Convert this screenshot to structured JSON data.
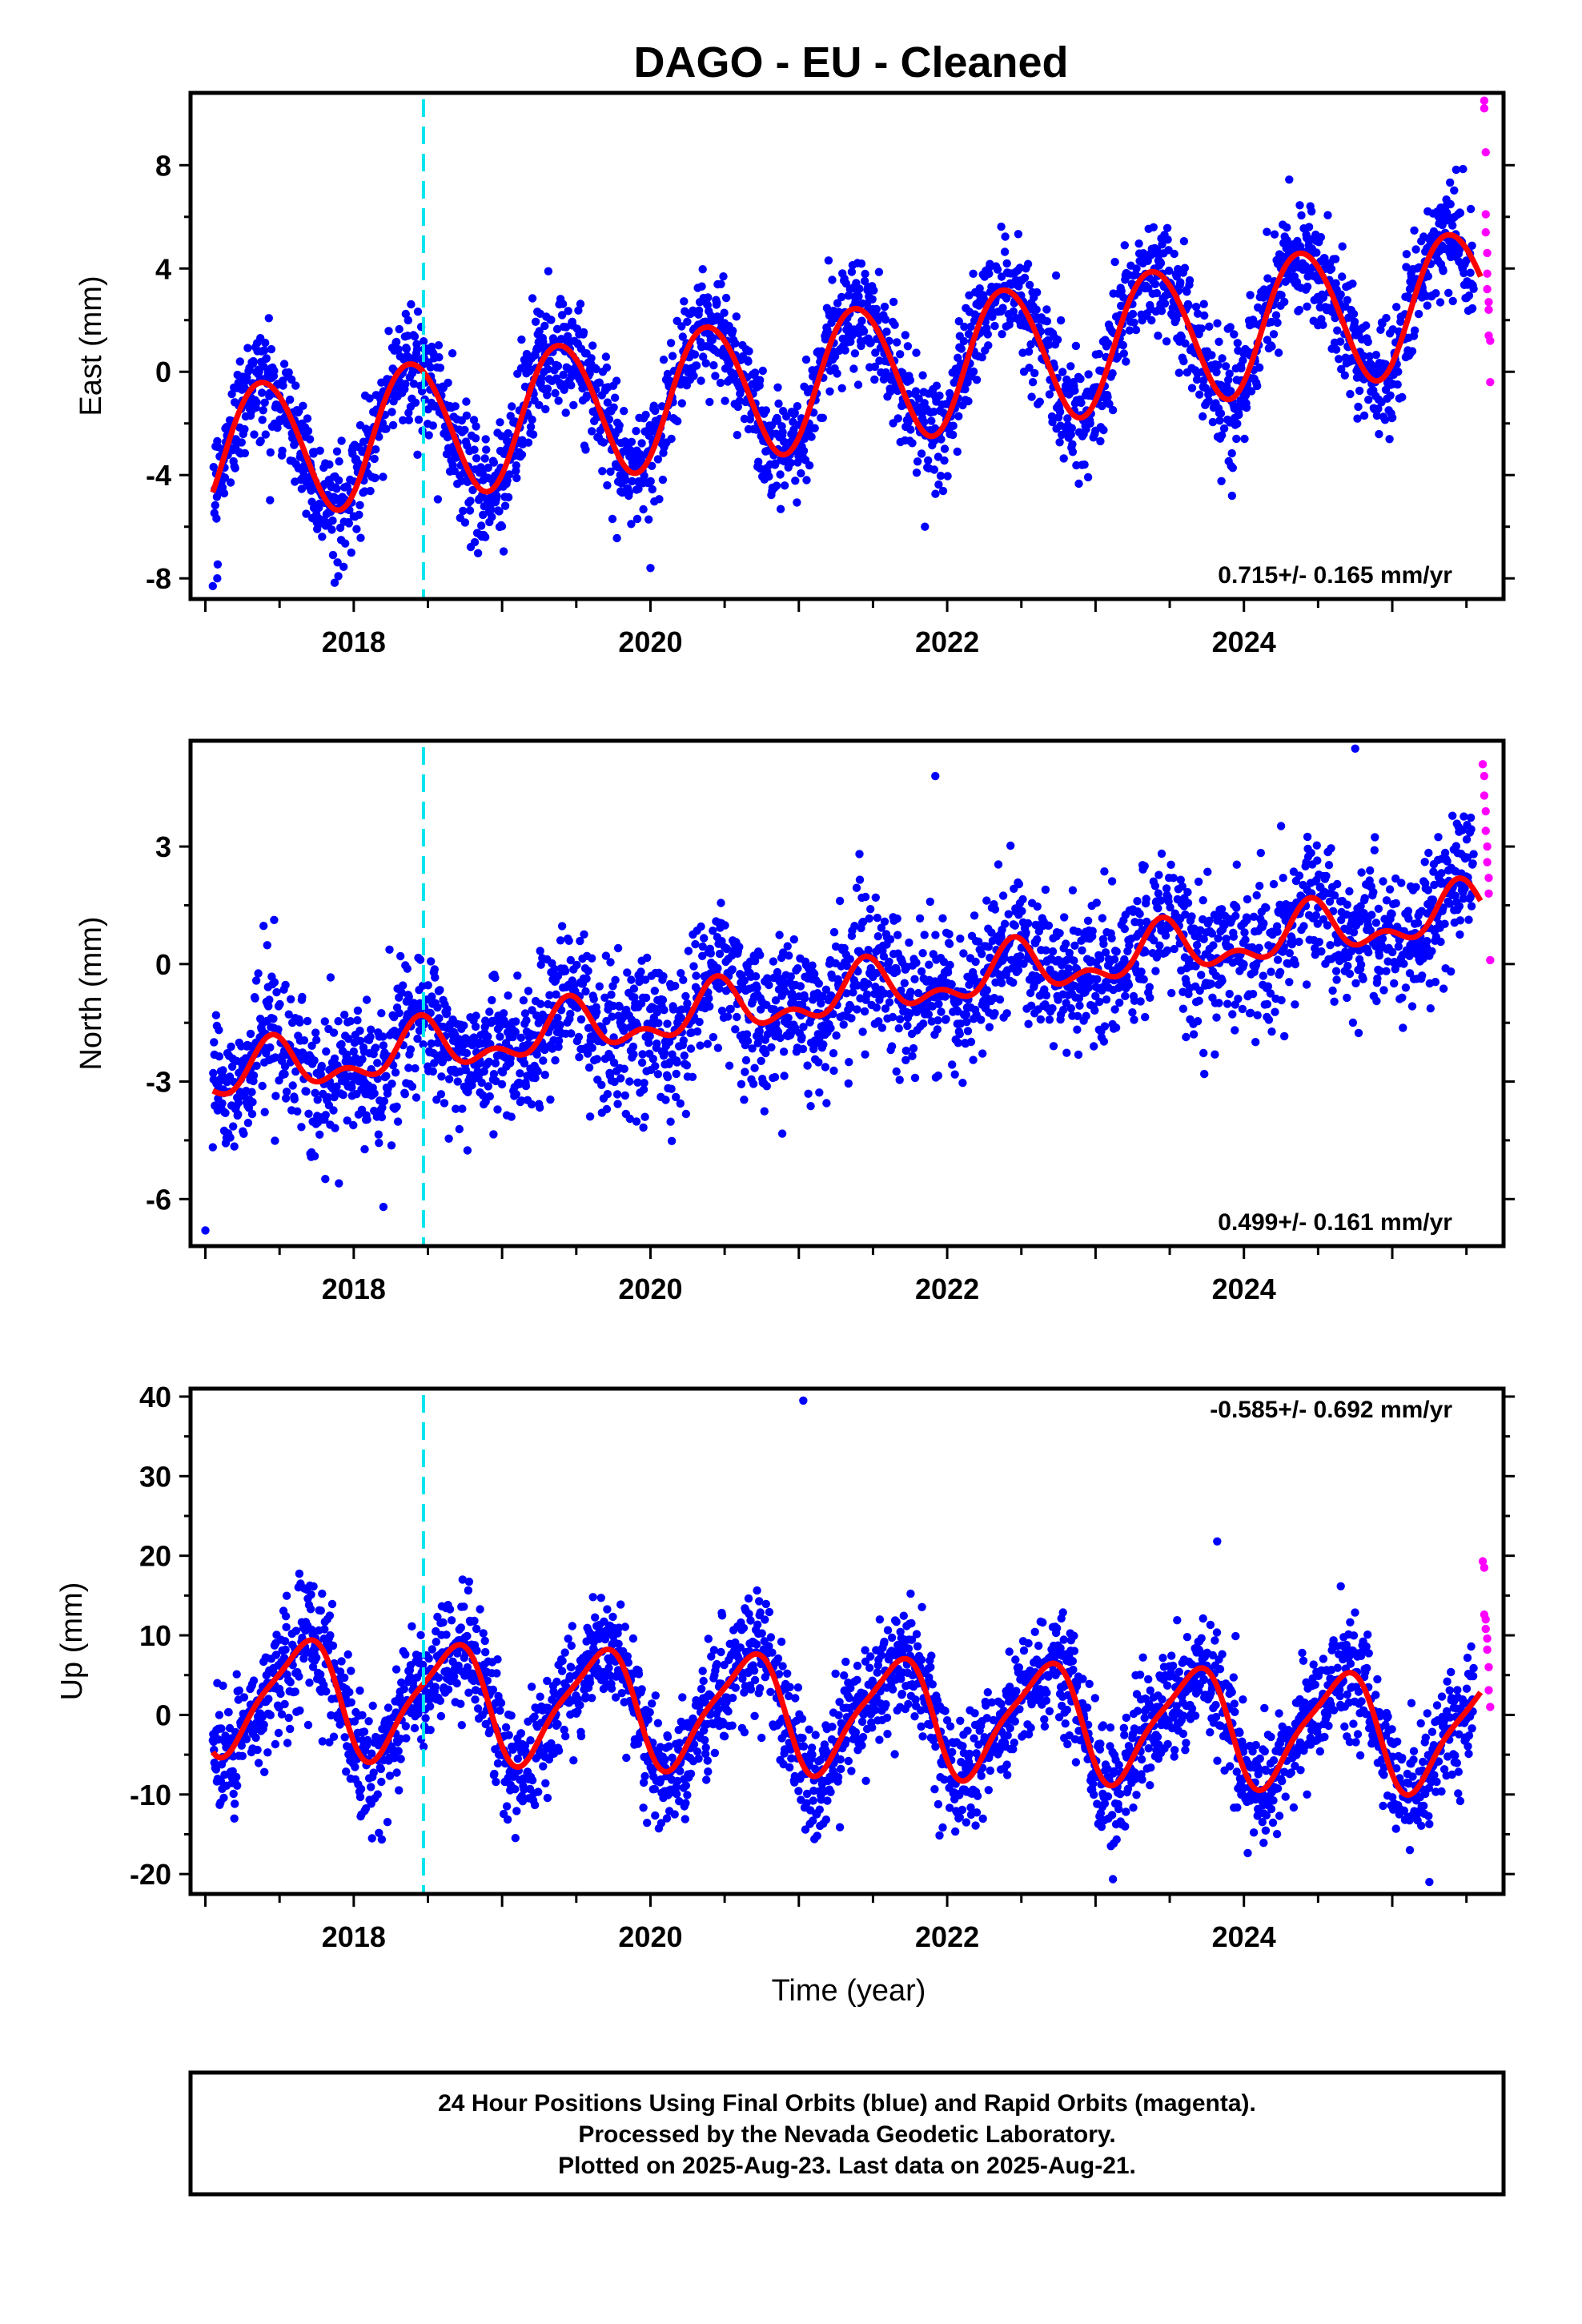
{
  "title": "DAGO  - EU - Cleaned",
  "xlabel": "Time (year)",
  "caption": {
    "line1": "24 Hour Positions Using Final Orbits (blue) and Rapid Orbits (magenta).",
    "line2": "Processed by the Nevada Geodetic Laboratory.",
    "line3": "Plotted on 2025-Aug-23. Last data on 2025-Aug-21."
  },
  "colors": {
    "final_orbits": "#0000ff",
    "rapid_orbits": "#ff00ff",
    "model_fit": "#ff0000",
    "event_line": "#00e5ee"
  },
  "chart_data": [
    {
      "type": "scatter",
      "name": "east",
      "ylabel": "East (mm)",
      "xlim": [
        2016.9,
        2025.75
      ],
      "ylim": [
        -8.8,
        10.8
      ],
      "xticks": [
        2018,
        2020,
        2022,
        2024
      ],
      "yticks": [
        -8,
        -4,
        0,
        4,
        8
      ],
      "rate_text": "0.715+/- 0.165 mm/yr",
      "rate_position": "bottom-right",
      "event_line_x": 2018.47,
      "grid": false,
      "model": {
        "start": 2017.05,
        "end": 2025.6,
        "offset": -3.2,
        "trend": 0.715,
        "annual_amp": 2.65,
        "annual_peak": 2017.39,
        "semi_amp": 0.15,
        "semi_peak": 2017.2
      },
      "scatter_noise_sd": 1.1,
      "final_orbits_span": [
        2017.05,
        2025.55
      ],
      "rapid_orbits": {
        "x": [
          2025.62,
          2025.62,
          2025.63,
          2025.63,
          2025.63,
          2025.64,
          2025.64,
          2025.64,
          2025.65,
          2025.65,
          2025.65,
          2025.66,
          2025.66
        ],
        "y": [
          10.2,
          10.5,
          8.5,
          6.1,
          5.4,
          4.6,
          3.8,
          3.2,
          2.7,
          2.4,
          1.4,
          1.2,
          -0.4
        ]
      },
      "outliers": {
        "x": [
          2017.05,
          2017.08,
          2020.0,
          2021.85,
          2023.92
        ],
        "y": [
          -8.3,
          -8.0,
          -7.6,
          -6.0,
          -4.8
        ]
      }
    },
    {
      "type": "scatter",
      "name": "north",
      "ylabel": "North (mm)",
      "xlim": [
        2016.9,
        2025.75
      ],
      "ylim": [
        -7.2,
        5.7
      ],
      "xticks": [
        2018,
        2020,
        2022,
        2024
      ],
      "yticks": [
        -6,
        -3,
        0,
        3
      ],
      "rate_text": "0.499+/- 0.161 mm/yr",
      "rate_position": "bottom-right",
      "event_line_x": 2018.47,
      "grid": false,
      "model": {
        "start": 2017.05,
        "end": 2025.6,
        "offset": -2.9,
        "trend": 0.499,
        "annual_amp": 0.55,
        "annual_peak": 2017.45,
        "semi_amp": 0.35,
        "semi_peak": 2017.45
      },
      "scatter_noise_sd": 0.9,
      "final_orbits_span": [
        2017.05,
        2025.55
      ],
      "rapid_orbits": {
        "x": [
          2025.61,
          2025.62,
          2025.62,
          2025.63,
          2025.63,
          2025.64,
          2025.64,
          2025.65,
          2025.65,
          2025.66
        ],
        "y": [
          5.1,
          4.8,
          4.3,
          3.9,
          3.4,
          3.0,
          2.6,
          2.2,
          1.8,
          0.1
        ]
      },
      "outliers": {
        "x": [
          2017.0,
          2017.9,
          2018.2,
          2021.92,
          2024.75
        ],
        "y": [
          -6.8,
          -5.6,
          -6.2,
          4.8,
          5.5
        ]
      }
    },
    {
      "type": "scatter",
      "name": "up",
      "ylabel": "Up (mm)",
      "xlim": [
        2016.9,
        2025.75
      ],
      "ylim": [
        -22.5,
        41
      ],
      "xticks": [
        2018,
        2020,
        2022,
        2024
      ],
      "yticks": [
        -20,
        -10,
        0,
        10,
        20,
        30,
        40
      ],
      "rate_text": "-0.585+/- 0.692 mm/yr",
      "rate_position": "top-right",
      "event_line_x": 2018.47,
      "grid": false,
      "model": {
        "start": 2017.05,
        "end": 2025.6,
        "offset": 2.6,
        "trend": -0.585,
        "annual_amp": 7.0,
        "annual_peak": 2017.65,
        "semi_amp": 1.6,
        "semi_peak": 2017.3
      },
      "scatter_noise_sd": 3.6,
      "final_orbits_span": [
        2017.05,
        2025.55
      ],
      "rapid_orbits": {
        "x": [
          2025.61,
          2025.62,
          2025.62,
          2025.63,
          2025.63,
          2025.64,
          2025.64,
          2025.65,
          2025.65,
          2025.66
        ],
        "y": [
          19.3,
          18.5,
          12.6,
          12.0,
          10.8,
          9.6,
          8.2,
          6.0,
          3.1,
          1.0
        ]
      },
      "outliers": {
        "x": [
          2021.03,
          2023.82,
          2025.25
        ],
        "y": [
          39.5,
          21.8,
          -21.0
        ]
      }
    }
  ]
}
